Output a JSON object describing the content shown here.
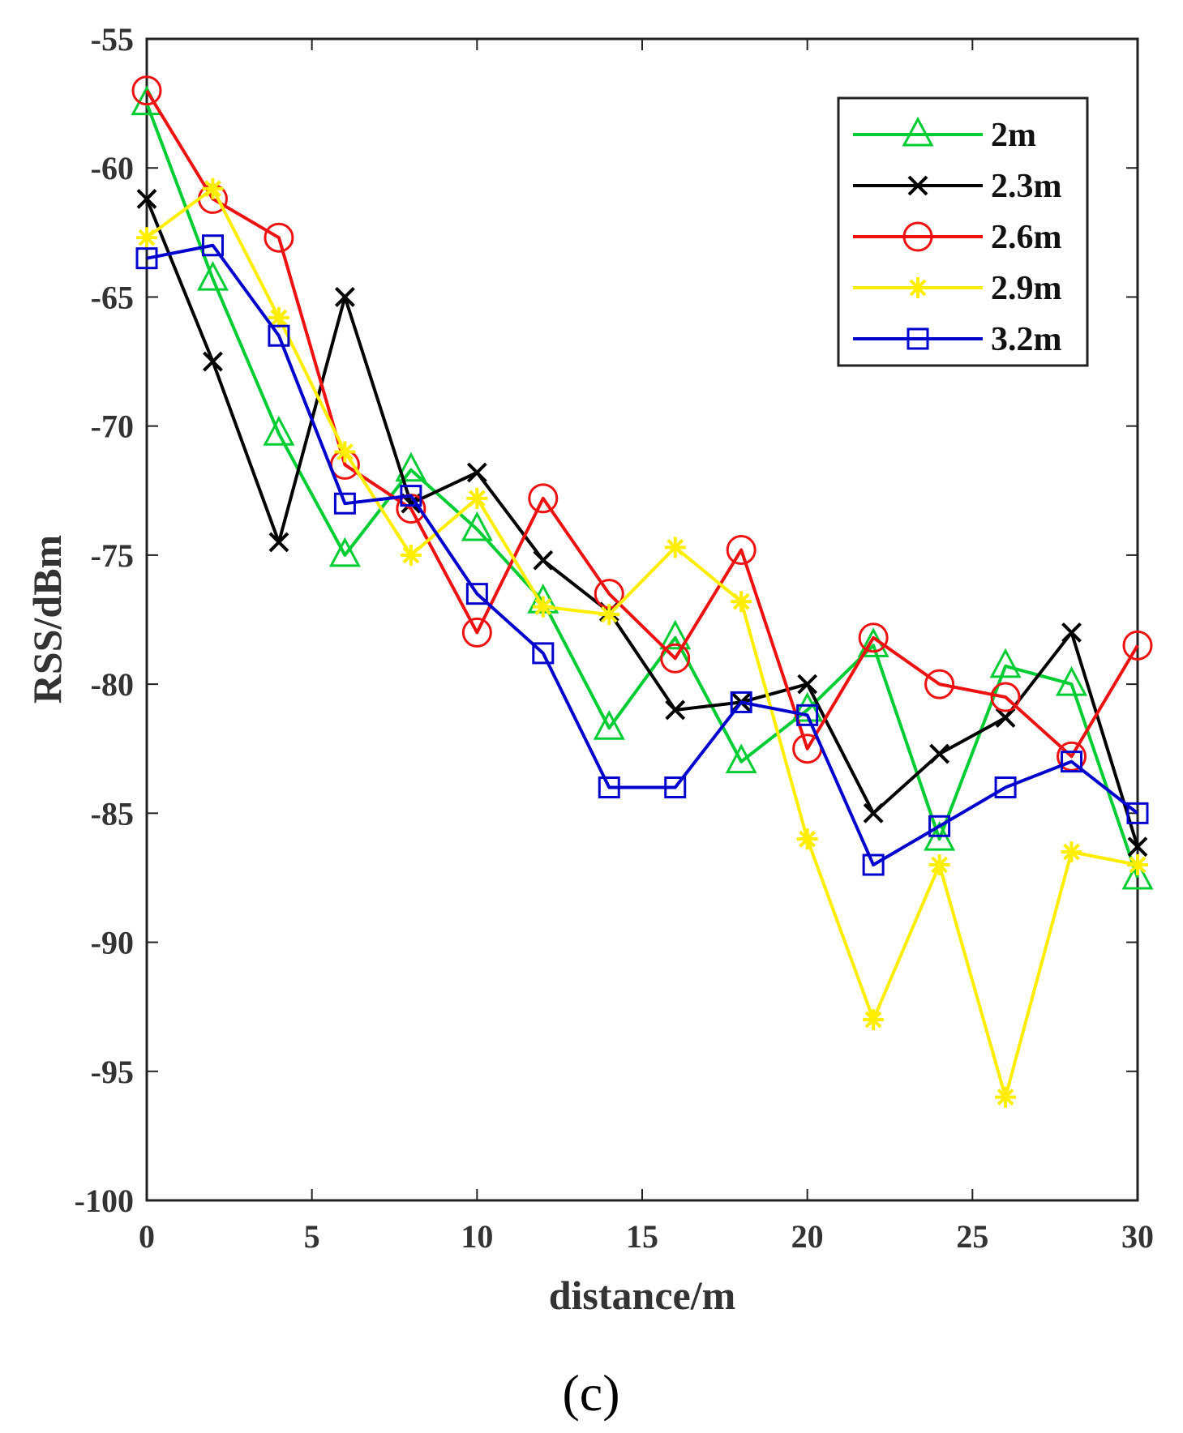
{
  "panel_label": "(c)",
  "chart_data": {
    "type": "line",
    "title": "",
    "xlabel": "distance/m",
    "ylabel": "RSS/dBm",
    "xlim": [
      0,
      30
    ],
    "ylim": [
      -100,
      -55
    ],
    "xticks": [
      0,
      5,
      10,
      15,
      20,
      25,
      30
    ],
    "yticks": [
      -55,
      -60,
      -65,
      -70,
      -75,
      -80,
      -85,
      -90,
      -95,
      -100
    ],
    "grid": false,
    "legend_position": "top-right",
    "x": [
      0,
      2,
      4,
      6,
      8,
      10,
      12,
      14,
      16,
      18,
      20,
      22,
      24,
      26,
      28,
      30
    ],
    "series": [
      {
        "name": "2m",
        "color": "#00cc33",
        "marker": "triangle",
        "values": [
          -57.5,
          -64.3,
          -70.3,
          -75,
          -71.7,
          -74,
          -76.8,
          -81.7,
          -78.2,
          -83,
          -81,
          -78.5,
          -86,
          -79.3,
          -80,
          -87.5
        ]
      },
      {
        "name": "2.3m",
        "color": "#000000",
        "marker": "x",
        "values": [
          -61.2,
          -67.5,
          -74.5,
          -65,
          -73,
          -71.8,
          -75.2,
          -77.2,
          -81,
          -80.7,
          -80,
          -85,
          -82.7,
          -81.3,
          -78,
          -86.3
        ]
      },
      {
        "name": "2.6m",
        "color": "#ee1111",
        "marker": "circle",
        "values": [
          -57,
          -61.2,
          -62.7,
          -71.5,
          -73.2,
          -78,
          -72.8,
          -76.5,
          -79,
          -74.8,
          -82.5,
          -78.2,
          -80,
          -80.5,
          -82.8,
          -78.5
        ]
      },
      {
        "name": "2.9m",
        "color": "#ffee00",
        "marker": "star",
        "values": [
          -62.7,
          -60.8,
          -65.8,
          -71,
          -75,
          -72.8,
          -77,
          -77.3,
          -74.7,
          -76.8,
          -86,
          -93,
          -87,
          -96,
          -86.5,
          -87
        ]
      },
      {
        "name": "3.2m",
        "color": "#0000cc",
        "marker": "square",
        "values": [
          -63.5,
          -63,
          -66.5,
          -73,
          -72.7,
          -76.5,
          -78.8,
          -84,
          -84,
          -80.7,
          -81.2,
          -87,
          -85.5,
          -84,
          -83,
          -85
        ]
      }
    ]
  }
}
